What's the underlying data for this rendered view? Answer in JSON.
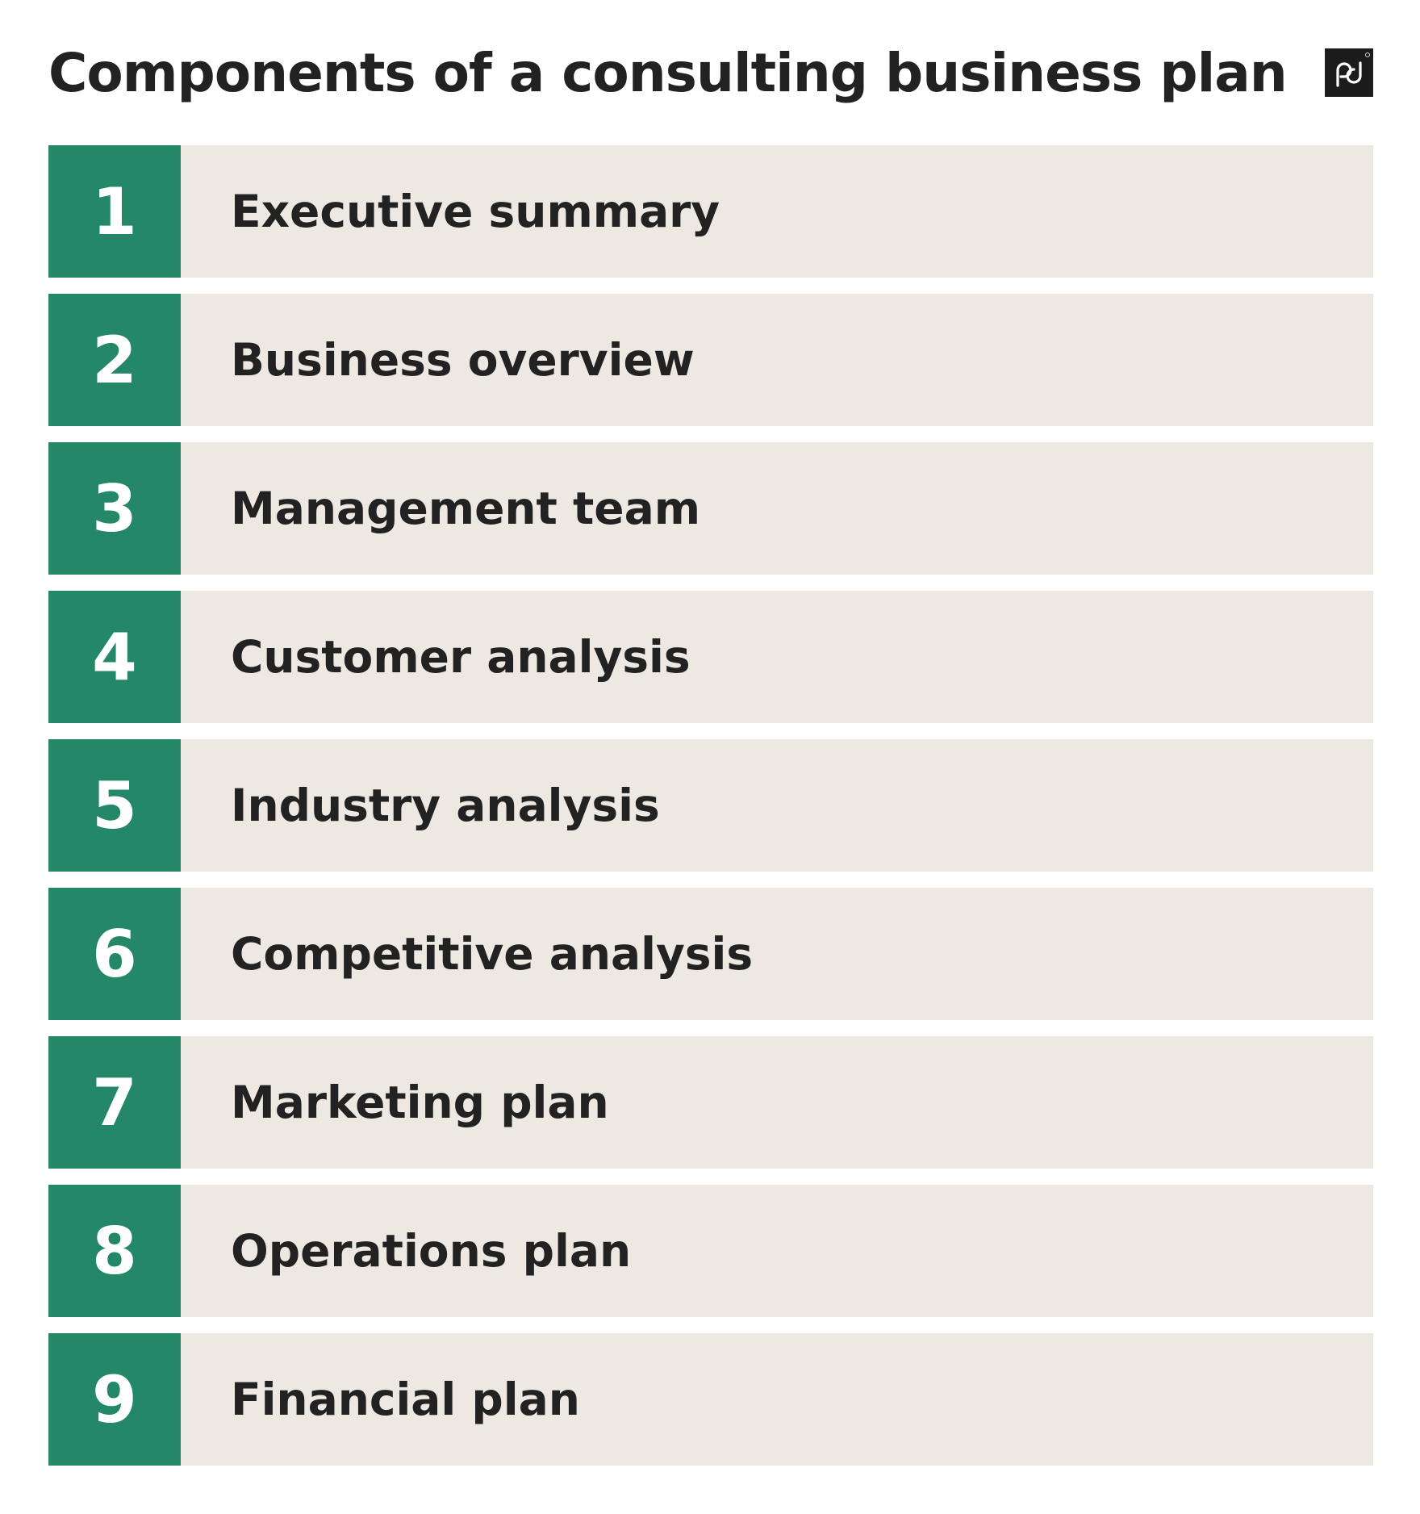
{
  "title": "Components of a consulting business plan",
  "logo": {
    "icon": "pd-logo-icon",
    "background": "#1c1c1c"
  },
  "colors": {
    "number_bg": "#238768",
    "row_bg": "#ede9e2",
    "text": "#222222"
  },
  "items": [
    {
      "number": "1",
      "label": "Executive summary"
    },
    {
      "number": "2",
      "label": "Business overview"
    },
    {
      "number": "3",
      "label": "Management team"
    },
    {
      "number": "4",
      "label": "Customer analysis"
    },
    {
      "number": "5",
      "label": "Industry analysis"
    },
    {
      "number": "6",
      "label": "Competitive analysis"
    },
    {
      "number": "7",
      "label": "Marketing plan"
    },
    {
      "number": "8",
      "label": "Operations plan"
    },
    {
      "number": "9",
      "label": "Financial plan"
    }
  ]
}
